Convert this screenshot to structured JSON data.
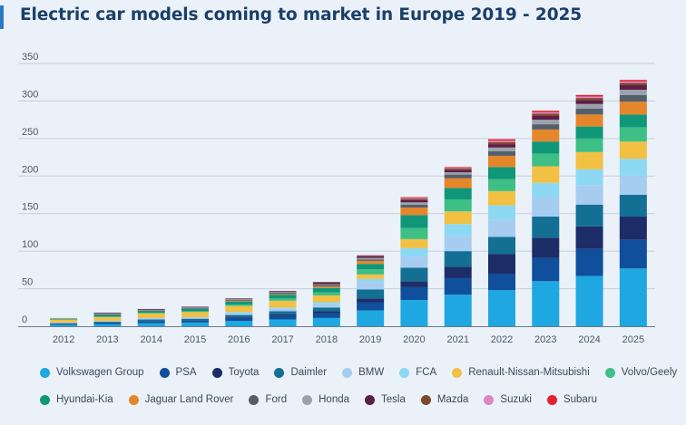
{
  "title": "Electric car models coming to market in Europe 2019 - 2025",
  "chart_data": {
    "type": "bar",
    "stacked": true,
    "title": "Electric car models coming to market in Europe 2019 - 2025",
    "xlabel": "",
    "ylabel": "",
    "ylim": [
      0,
      350
    ],
    "yticks": [
      0,
      50,
      100,
      150,
      200,
      250,
      300,
      350
    ],
    "grid": true,
    "legend_position": "bottom",
    "categories": [
      "2012",
      "2013",
      "2014",
      "2015",
      "2016",
      "2017",
      "2018",
      "2019",
      "2020",
      "2021",
      "2022",
      "2023",
      "2024",
      "2025"
    ],
    "series": [
      {
        "name": "Volkswagen Group",
        "color": "#1ea7e0",
        "values": [
          2,
          3,
          4,
          5,
          7,
          9,
          11,
          21,
          35,
          42,
          48,
          60,
          67,
          77
        ]
      },
      {
        "name": "PSA",
        "color": "#0f4f9b",
        "values": [
          1,
          2,
          3,
          3,
          4,
          5,
          6,
          11,
          17,
          22,
          22,
          31,
          36,
          38
        ]
      },
      {
        "name": "Toyota",
        "color": "#1d2d68",
        "values": [
          0,
          0,
          0,
          0,
          1,
          2,
          3,
          5,
          8,
          15,
          26,
          27,
          30,
          31
        ]
      },
      {
        "name": "Daimler",
        "color": "#136f94",
        "values": [
          1,
          1,
          2,
          2,
          3,
          4,
          5,
          12,
          18,
          21,
          23,
          28,
          29,
          29
        ]
      },
      {
        "name": "BMW",
        "color": "#a6cdf0",
        "values": [
          1,
          1,
          2,
          2,
          3,
          4,
          5,
          10,
          15,
          20,
          23,
          26,
          26,
          26
        ]
      },
      {
        "name": "FCA",
        "color": "#8dd8f3",
        "values": [
          0,
          0,
          0,
          0,
          1,
          1,
          2,
          4,
          11,
          16,
          19,
          19,
          21,
          22
        ]
      },
      {
        "name": "Renault-Nissan-Mitsubishi",
        "color": "#f2c043",
        "values": [
          4,
          5,
          6,
          7,
          8,
          9,
          9,
          6,
          12,
          17,
          19,
          22,
          23,
          23
        ]
      },
      {
        "name": "Volvo/Geely",
        "color": "#3dbf86",
        "values": [
          0,
          1,
          1,
          1,
          2,
          3,
          4,
          7,
          15,
          16,
          16,
          17,
          18,
          19
        ]
      },
      {
        "name": "Hyundai-Kia",
        "color": "#109779",
        "values": [
          1,
          2,
          2,
          3,
          4,
          5,
          6,
          7,
          17,
          15,
          16,
          16,
          16,
          17
        ]
      },
      {
        "name": "Jaguar Land Rover",
        "color": "#e5862b",
        "values": [
          0,
          0,
          0,
          0,
          1,
          1,
          2,
          4,
          10,
          13,
          15,
          16,
          16,
          17
        ]
      },
      {
        "name": "Ford",
        "color": "#555f6a",
        "values": [
          0,
          1,
          1,
          1,
          1,
          2,
          2,
          2,
          4,
          5,
          6,
          7,
          8,
          9
        ]
      },
      {
        "name": "Honda",
        "color": "#9aa2ab",
        "values": [
          1,
          1,
          1,
          1,
          1,
          1,
          1,
          2,
          3,
          3,
          5,
          6,
          6,
          7
        ]
      },
      {
        "name": "Tesla",
        "color": "#5e1d49",
        "values": [
          0,
          1,
          1,
          1,
          1,
          1,
          2,
          2,
          3,
          3,
          4,
          5,
          5,
          6
        ]
      },
      {
        "name": "Mazda",
        "color": "#7b4a2e",
        "values": [
          0,
          0,
          0,
          0,
          0,
          0,
          1,
          1,
          2,
          2,
          3,
          3,
          3,
          3
        ]
      },
      {
        "name": "Suzuki",
        "color": "#e085c3",
        "values": [
          0,
          0,
          0,
          0,
          0,
          0,
          0,
          1,
          1,
          1,
          2,
          2,
          2,
          2
        ]
      },
      {
        "name": "Subaru",
        "color": "#e3202b",
        "values": [
          0,
          0,
          0,
          0,
          0,
          0,
          0,
          0,
          1,
          1,
          2,
          2,
          2,
          2
        ]
      }
    ]
  }
}
